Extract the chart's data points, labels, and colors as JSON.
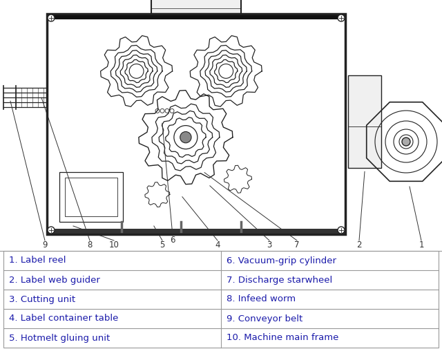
{
  "bg_color": "#ffffff",
  "table_border_color": "#999999",
  "table_text_color": "#1a1aaa",
  "table_font_size": 9.5,
  "left_col": [
    "1. Label reel",
    "2. Label web guider",
    "3. Cutting unit",
    "4. Label container table",
    "5. Hotmelt gluing unit"
  ],
  "right_col": [
    "6. Vacuum-grip cylinder",
    "7. Discharge starwheel",
    "8. Infeed worm",
    "9. Conveyor belt",
    "10. Machine main frame"
  ],
  "line_color": "#222222",
  "fill_white": "#ffffff",
  "fill_light": "#f0f0f0",
  "fill_med": "#cccccc",
  "fill_dark": "#888888"
}
